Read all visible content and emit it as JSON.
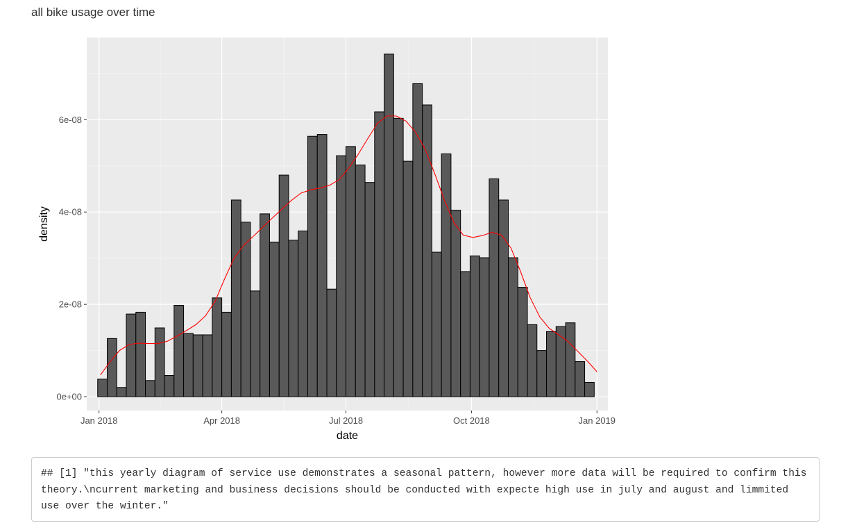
{
  "heading": "all bike usage over time",
  "console_output": "## [1] \"this yearly diagram of service use demonstrates a seasonal pattern, however more data will be required to confirm this theory.\\ncurrent marketing and business decisions should be conducted with expecte high use in july and august and limmited use over the winter.\"",
  "colors": {
    "panel_bg": "#ebebeb",
    "grid_major": "#ffffff",
    "bar_fill": "#595959",
    "bar_outline": "#000000",
    "density_line": "#ff0000"
  },
  "chart_data": {
    "type": "bar",
    "subtype": "histogram-with-density",
    "xlabel": "date",
    "ylabel": "density",
    "x_domain": [
      "2017-12-23",
      "2019-01-09"
    ],
    "ylim": [
      -3e-09,
      7.78e-08
    ],
    "y_ticks": [
      {
        "value": 0,
        "label": "0e+00"
      },
      {
        "value": 2e-08,
        "label": "2e-08"
      },
      {
        "value": 4e-08,
        "label": "4e-08"
      },
      {
        "value": 6e-08,
        "label": "6e-08"
      }
    ],
    "x_ticks": [
      {
        "date": "2018-01-01",
        "label": "Jan 2018"
      },
      {
        "date": "2018-04-01",
        "label": "Apr 2018"
      },
      {
        "date": "2018-07-01",
        "label": "Jul 2018"
      },
      {
        "date": "2018-10-01",
        "label": "Oct 2018"
      },
      {
        "date": "2019-01-01",
        "label": "Jan 2019"
      }
    ],
    "bins_start": "2017-12-31",
    "bin_width_days": 7,
    "bar_values": [
      3.8e-09,
      1.26e-08,
      2e-09,
      1.79e-08,
      1.83e-08,
      3.5e-09,
      1.49e-08,
      4.6e-09,
      1.98e-08,
      1.37e-08,
      1.34e-08,
      1.34e-08,
      2.14e-08,
      1.83e-08,
      4.26e-08,
      3.78e-08,
      2.29e-08,
      3.96e-08,
      3.35e-08,
      4.8e-08,
      3.39e-08,
      3.59e-08,
      5.64e-08,
      5.68e-08,
      2.33e-08,
      5.22e-08,
      5.42e-08,
      5.02e-08,
      4.64e-08,
      6.17e-08,
      7.42e-08,
      6.03e-08,
      5.1e-08,
      6.78e-08,
      6.32e-08,
      3.13e-08,
      5.26e-08,
      4.04e-08,
      2.71e-08,
      3.05e-08,
      3.01e-08,
      4.72e-08,
      4.26e-08,
      3.01e-08,
      2.37e-08,
      1.56e-08,
      1e-08,
      1.41e-08,
      1.52e-08,
      1.6e-08,
      7.6e-09,
      3.1e-09
    ],
    "density_curve": {
      "name": "density",
      "x": [
        "2018-01-02",
        "2018-01-09",
        "2018-01-16",
        "2018-01-23",
        "2018-01-30",
        "2018-02-06",
        "2018-02-13",
        "2018-02-20",
        "2018-02-27",
        "2018-03-06",
        "2018-03-13",
        "2018-03-20",
        "2018-03-27",
        "2018-04-03",
        "2018-04-10",
        "2018-04-17",
        "2018-04-24",
        "2018-05-01",
        "2018-05-08",
        "2018-05-15",
        "2018-05-22",
        "2018-05-29",
        "2018-06-05",
        "2018-06-12",
        "2018-06-19",
        "2018-06-26",
        "2018-07-03",
        "2018-07-10",
        "2018-07-17",
        "2018-07-24",
        "2018-07-31",
        "2018-08-07",
        "2018-08-14",
        "2018-08-21",
        "2018-08-28",
        "2018-09-04",
        "2018-09-11",
        "2018-09-18",
        "2018-09-25",
        "2018-10-02",
        "2018-10-09",
        "2018-10-16",
        "2018-10-23",
        "2018-10-30",
        "2018-11-06",
        "2018-11-13",
        "2018-11-20",
        "2018-11-27",
        "2018-12-04",
        "2018-12-11",
        "2018-12-18",
        "2018-12-25",
        "2019-01-01"
      ],
      "y": [
        4.7e-09,
        7.5e-09,
        1e-08,
        1.13e-08,
        1.16e-08,
        1.15e-08,
        1.15e-08,
        1.2e-08,
        1.31e-08,
        1.43e-08,
        1.56e-08,
        1.75e-08,
        2.06e-08,
        2.55e-08,
        3e-08,
        3.28e-08,
        3.47e-08,
        3.67e-08,
        3.87e-08,
        4.06e-08,
        4.25e-08,
        4.41e-08,
        4.48e-08,
        4.52e-08,
        4.58e-08,
        4.7e-08,
        4.95e-08,
        5.25e-08,
        5.59e-08,
        5.92e-08,
        6.08e-08,
        6.08e-08,
        5.97e-08,
        5.73e-08,
        5.36e-08,
        4.84e-08,
        4.27e-08,
        3.78e-08,
        3.5e-08,
        3.45e-08,
        3.49e-08,
        3.56e-08,
        3.5e-08,
        3.22e-08,
        2.71e-08,
        2.15e-08,
        1.73e-08,
        1.48e-08,
        1.34e-08,
        1.19e-08,
        9.8e-09,
        7.7e-09,
        5.4e-09
      ]
    }
  }
}
